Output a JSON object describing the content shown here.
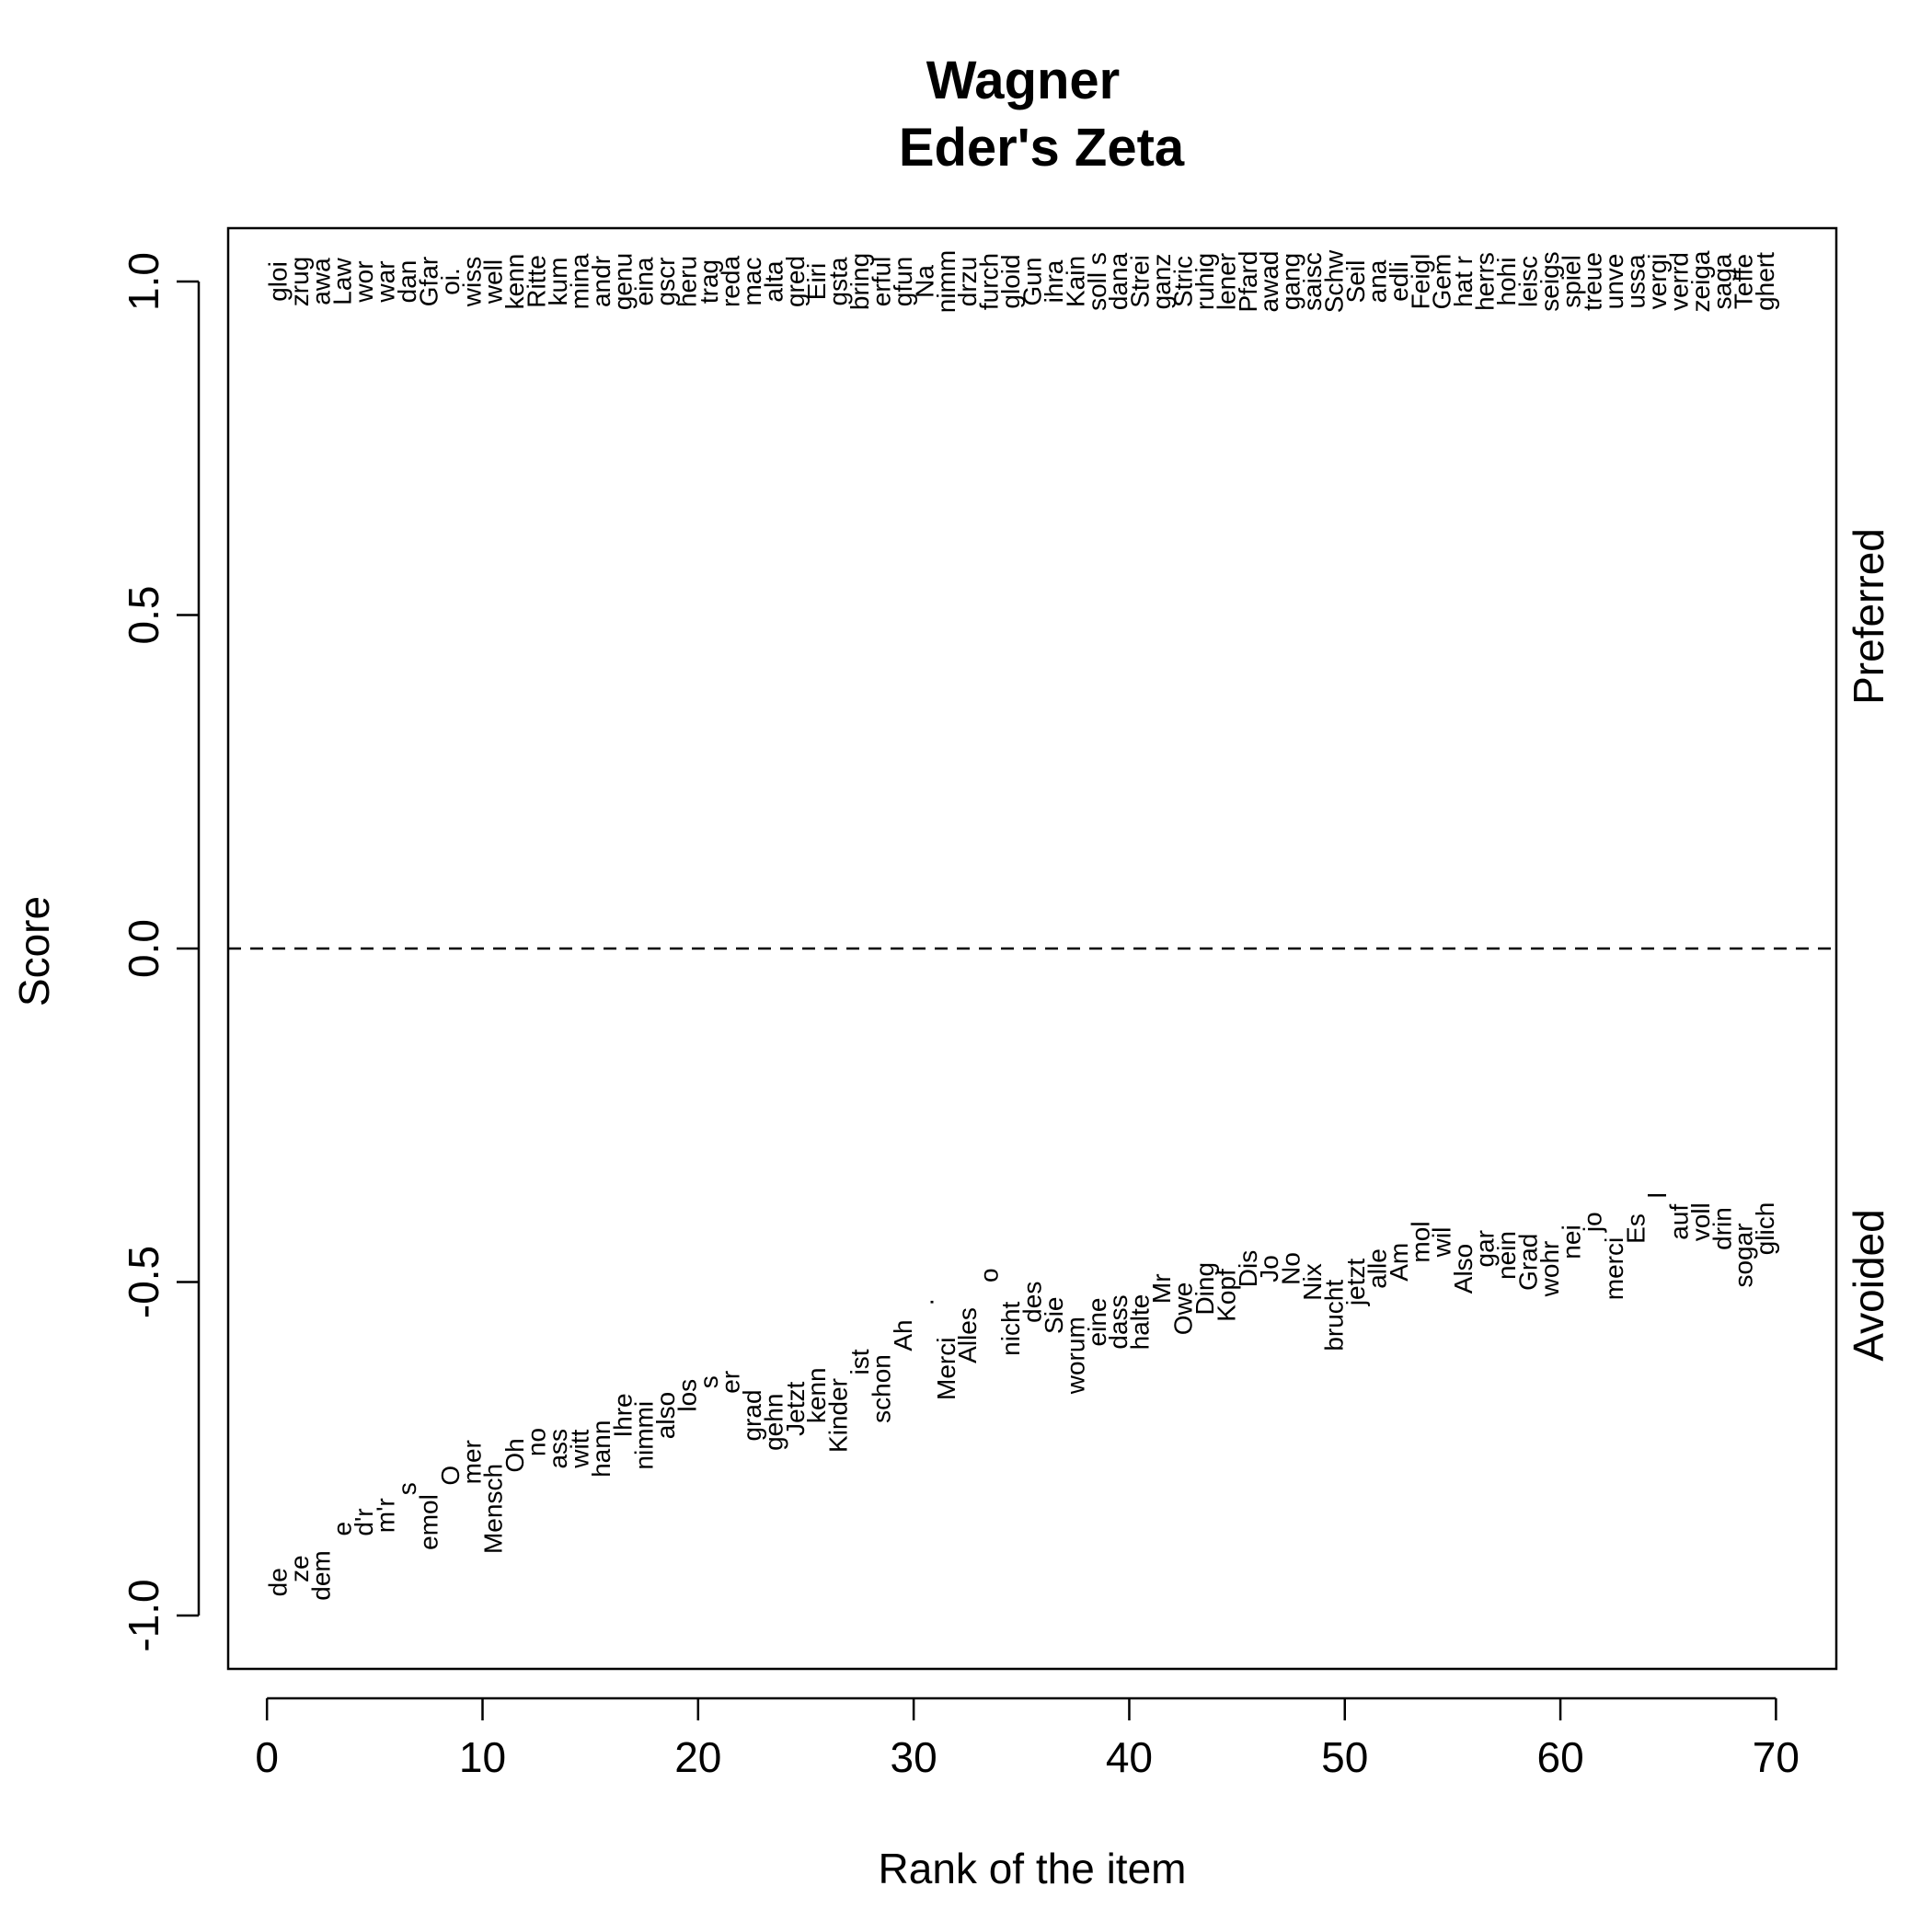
{
  "chart_data": {
    "type": "scatter",
    "title": "Wagner",
    "subtitle": "Eder's Zeta",
    "xlabel": "Rank of the item",
    "ylabel": "Score",
    "xlim": [
      -1.8,
      72.8
    ],
    "ylim": [
      -1.08,
      1.08
    ],
    "xticks": [
      0,
      10,
      20,
      30,
      40,
      50,
      60,
      70
    ],
    "yticks": [
      -1.0,
      -0.5,
      0.0,
      0.5,
      1.0
    ],
    "ytick_labels": [
      "-1.0",
      "-0.5",
      "0.0",
      "0.5",
      "1.0"
    ],
    "right_labels": {
      "preferred": "Preferred",
      "avoided": "Avoided"
    },
    "reference_line": {
      "y": 0,
      "style": "dashed"
    },
    "grid": false,
    "preferred": [
      {
        "x": 0.5,
        "y": 1.0,
        "label": "gloi"
      },
      {
        "x": 1.5,
        "y": 1.0,
        "label": "zrug"
      },
      {
        "x": 2.5,
        "y": 1.0,
        "label": "awa"
      },
      {
        "x": 3.5,
        "y": 1.0,
        "label": "Law"
      },
      {
        "x": 4.5,
        "y": 1.0,
        "label": "wor"
      },
      {
        "x": 5.5,
        "y": 1.0,
        "label": "war"
      },
      {
        "x": 6.5,
        "y": 1.0,
        "label": "dan"
      },
      {
        "x": 7.5,
        "y": 1.0,
        "label": "Gfar"
      },
      {
        "x": 8.5,
        "y": 1.0,
        "label": "oi."
      },
      {
        "x": 9.5,
        "y": 1.0,
        "label": "wiss"
      },
      {
        "x": 10.5,
        "y": 1.0,
        "label": "well"
      },
      {
        "x": 11.5,
        "y": 1.0,
        "label": "kenn"
      },
      {
        "x": 12.5,
        "y": 1.0,
        "label": "Ritte"
      },
      {
        "x": 13.5,
        "y": 1.0,
        "label": "kum"
      },
      {
        "x": 14.5,
        "y": 1.0,
        "label": "mina"
      },
      {
        "x": 15.5,
        "y": 1.0,
        "label": "andr"
      },
      {
        "x": 16.5,
        "y": 1.0,
        "label": "genu"
      },
      {
        "x": 17.5,
        "y": 1.0,
        "label": "eina"
      },
      {
        "x": 18.5,
        "y": 1.0,
        "label": "gscr"
      },
      {
        "x": 19.5,
        "y": 1.0,
        "label": "heru"
      },
      {
        "x": 20.5,
        "y": 1.0,
        "label": "trag"
      },
      {
        "x": 21.5,
        "y": 1.0,
        "label": "reda"
      },
      {
        "x": 22.5,
        "y": 1.0,
        "label": "mac"
      },
      {
        "x": 23.5,
        "y": 1.0,
        "label": "alta"
      },
      {
        "x": 24.5,
        "y": 1.0,
        "label": "gred"
      },
      {
        "x": 25.5,
        "y": 1.0,
        "label": "Eiri"
      },
      {
        "x": 26.5,
        "y": 1.0,
        "label": "gsta"
      },
      {
        "x": 27.5,
        "y": 1.0,
        "label": "bring"
      },
      {
        "x": 28.5,
        "y": 1.0,
        "label": "erful"
      },
      {
        "x": 29.5,
        "y": 1.0,
        "label": "gfun"
      },
      {
        "x": 30.5,
        "y": 1.0,
        "label": "Na"
      },
      {
        "x": 31.5,
        "y": 1.0,
        "label": "nimm"
      },
      {
        "x": 32.5,
        "y": 1.0,
        "label": "drzu"
      },
      {
        "x": 33.5,
        "y": 1.0,
        "label": "furch"
      },
      {
        "x": 34.5,
        "y": 1.0,
        "label": "gloid"
      },
      {
        "x": 35.5,
        "y": 1.0,
        "label": "Gun"
      },
      {
        "x": 36.5,
        "y": 1.0,
        "label": "ihra"
      },
      {
        "x": 37.5,
        "y": 1.0,
        "label": "Kain"
      },
      {
        "x": 38.5,
        "y": 1.0,
        "label": "soll s"
      },
      {
        "x": 39.5,
        "y": 1.0,
        "label": "dana"
      },
      {
        "x": 40.5,
        "y": 1.0,
        "label": "Strei"
      },
      {
        "x": 41.5,
        "y": 1.0,
        "label": "ganz"
      },
      {
        "x": 42.5,
        "y": 1.0,
        "label": "Stric"
      },
      {
        "x": 43.5,
        "y": 1.0,
        "label": "ruhig"
      },
      {
        "x": 44.5,
        "y": 1.0,
        "label": "lener"
      },
      {
        "x": 45.5,
        "y": 1.0,
        "label": "Pfard"
      },
      {
        "x": 46.5,
        "y": 1.0,
        "label": "awad"
      },
      {
        "x": 47.5,
        "y": 1.0,
        "label": "gang"
      },
      {
        "x": 48.5,
        "y": 1.0,
        "label": "saisc"
      },
      {
        "x": 49.5,
        "y": 1.0,
        "label": "Schw"
      },
      {
        "x": 50.5,
        "y": 1.0,
        "label": "Seil"
      },
      {
        "x": 51.5,
        "y": 1.0,
        "label": "ana"
      },
      {
        "x": 52.5,
        "y": 1.0,
        "label": "edli"
      },
      {
        "x": 53.5,
        "y": 1.0,
        "label": "Feigl"
      },
      {
        "x": 54.5,
        "y": 1.0,
        "label": "Gem"
      },
      {
        "x": 55.5,
        "y": 1.0,
        "label": "hat r"
      },
      {
        "x": 56.5,
        "y": 1.0,
        "label": "herrs"
      },
      {
        "x": 57.5,
        "y": 1.0,
        "label": "hohi"
      },
      {
        "x": 58.5,
        "y": 1.0,
        "label": "leisc"
      },
      {
        "x": 59.5,
        "y": 1.0,
        "label": "seigs"
      },
      {
        "x": 60.5,
        "y": 1.0,
        "label": "spiel"
      },
      {
        "x": 61.5,
        "y": 1.0,
        "label": "treue"
      },
      {
        "x": 62.5,
        "y": 1.0,
        "label": "unve"
      },
      {
        "x": 63.5,
        "y": 1.0,
        "label": "ussa"
      },
      {
        "x": 64.5,
        "y": 1.0,
        "label": "vergi"
      },
      {
        "x": 65.5,
        "y": 1.0,
        "label": "verrd"
      },
      {
        "x": 66.5,
        "y": 1.0,
        "label": "zeiga"
      },
      {
        "x": 67.5,
        "y": 1.0,
        "label": "saga"
      },
      {
        "x": 68.5,
        "y": 1.0,
        "label": "Teffe"
      },
      {
        "x": 69.5,
        "y": 1.0,
        "label": "ghert"
      }
    ],
    "avoided": [
      {
        "x": 0.5,
        "y": -0.95,
        "label": "de"
      },
      {
        "x": 1.5,
        "y": -0.93,
        "label": "ze"
      },
      {
        "x": 2.5,
        "y": -0.94,
        "label": "dem"
      },
      {
        "x": 3.5,
        "y": -0.87,
        "label": "e"
      },
      {
        "x": 4.5,
        "y": -0.86,
        "label": "d'r"
      },
      {
        "x": 5.5,
        "y": -0.85,
        "label": "m'r"
      },
      {
        "x": 6.5,
        "y": -0.81,
        "label": "s"
      },
      {
        "x": 7.5,
        "y": -0.86,
        "label": "emol"
      },
      {
        "x": 8.5,
        "y": -0.79,
        "label": "O"
      },
      {
        "x": 9.5,
        "y": -0.77,
        "label": "mer"
      },
      {
        "x": 10.5,
        "y": -0.84,
        "label": "Mensch"
      },
      {
        "x": 11.5,
        "y": -0.76,
        "label": "Oh"
      },
      {
        "x": 12.5,
        "y": -0.74,
        "label": "no"
      },
      {
        "x": 13.5,
        "y": -0.75,
        "label": "ass"
      },
      {
        "x": 14.5,
        "y": -0.75,
        "label": "witt"
      },
      {
        "x": 15.5,
        "y": -0.75,
        "label": "hann"
      },
      {
        "x": 16.5,
        "y": -0.7,
        "label": "Ihre"
      },
      {
        "x": 17.5,
        "y": -0.73,
        "label": "nimmi"
      },
      {
        "x": 18.5,
        "y": -0.7,
        "label": "also"
      },
      {
        "x": 19.5,
        "y": -0.67,
        "label": "los"
      },
      {
        "x": 20.5,
        "y": -0.65,
        "label": "s"
      },
      {
        "x": 21.5,
        "y": -0.65,
        "label": "er"
      },
      {
        "x": 22.5,
        "y": -0.7,
        "label": "grad"
      },
      {
        "x": 23.5,
        "y": -0.71,
        "label": "gehn"
      },
      {
        "x": 24.5,
        "y": -0.69,
        "label": "Jetzt"
      },
      {
        "x": 25.5,
        "y": -0.67,
        "label": "kenn"
      },
      {
        "x": 26.5,
        "y": -0.7,
        "label": "Kinder"
      },
      {
        "x": 27.5,
        "y": -0.62,
        "label": "ist"
      },
      {
        "x": 28.5,
        "y": -0.66,
        "label": "schon"
      },
      {
        "x": 29.5,
        "y": -0.58,
        "label": "Ah"
      },
      {
        "x": 30.5,
        "y": -0.53,
        "label": "."
      },
      {
        "x": 31.5,
        "y": -0.63,
        "label": "Merci"
      },
      {
        "x": 32.5,
        "y": -0.58,
        "label": "Alles"
      },
      {
        "x": 33.5,
        "y": -0.49,
        "label": "o"
      },
      {
        "x": 34.5,
        "y": -0.57,
        "label": "nicht"
      },
      {
        "x": 35.5,
        "y": -0.53,
        "label": "des"
      },
      {
        "x": 36.5,
        "y": -0.55,
        "label": "Sie"
      },
      {
        "x": 37.5,
        "y": -0.61,
        "label": "worum"
      },
      {
        "x": 38.5,
        "y": -0.56,
        "label": "eine"
      },
      {
        "x": 39.5,
        "y": -0.56,
        "label": "dass"
      },
      {
        "x": 40.5,
        "y": -0.56,
        "label": "halte"
      },
      {
        "x": 41.5,
        "y": -0.51,
        "label": "Mr"
      },
      {
        "x": 42.5,
        "y": -0.54,
        "label": "Owe"
      },
      {
        "x": 43.5,
        "y": -0.51,
        "label": "Ding"
      },
      {
        "x": 44.5,
        "y": -0.52,
        "label": "Kopf"
      },
      {
        "x": 45.5,
        "y": -0.48,
        "label": "Dis"
      },
      {
        "x": 46.5,
        "y": -0.48,
        "label": "Jo"
      },
      {
        "x": 47.5,
        "y": -0.48,
        "label": "No"
      },
      {
        "x": 48.5,
        "y": -0.5,
        "label": "Nix"
      },
      {
        "x": 49.5,
        "y": -0.55,
        "label": "brucht"
      },
      {
        "x": 50.5,
        "y": -0.5,
        "label": "jetzt"
      },
      {
        "x": 51.5,
        "y": -0.48,
        "label": "alle"
      },
      {
        "x": 52.5,
        "y": -0.47,
        "label": "Am"
      },
      {
        "x": 53.5,
        "y": -0.44,
        "label": "mol"
      },
      {
        "x": 54.5,
        "y": -0.44,
        "label": "wil"
      },
      {
        "x": 55.5,
        "y": -0.48,
        "label": "Also"
      },
      {
        "x": 56.5,
        "y": -0.45,
        "label": "gar"
      },
      {
        "x": 57.5,
        "y": -0.46,
        "label": "nein"
      },
      {
        "x": 58.5,
        "y": -0.47,
        "label": "Grad"
      },
      {
        "x": 59.5,
        "y": -0.48,
        "label": "wohr"
      },
      {
        "x": 60.5,
        "y": -0.44,
        "label": "nei"
      },
      {
        "x": 61.5,
        "y": -0.41,
        "label": "jo"
      },
      {
        "x": 62.5,
        "y": -0.48,
        "label": "merci"
      },
      {
        "x": 63.5,
        "y": -0.42,
        "label": "Es"
      },
      {
        "x": 64.5,
        "y": -0.37,
        "label": "l"
      },
      {
        "x": 65.5,
        "y": -0.41,
        "label": "auf"
      },
      {
        "x": 66.5,
        "y": -0.41,
        "label": "voll"
      },
      {
        "x": 67.5,
        "y": -0.42,
        "label": "drin"
      },
      {
        "x": 68.5,
        "y": -0.46,
        "label": "sogar"
      },
      {
        "x": 69.5,
        "y": -0.42,
        "label": "glich"
      }
    ]
  }
}
